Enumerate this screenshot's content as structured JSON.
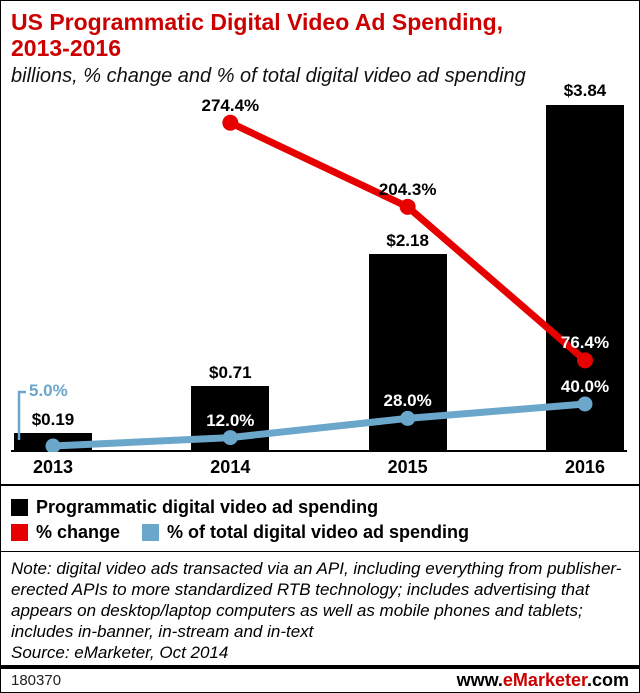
{
  "header": {
    "title_line1": "US Programmatic Digital Video Ad Spending,",
    "title_line2": "2013-2016",
    "subtitle": "billions, % change and % of total digital video ad spending"
  },
  "colors": {
    "title_red": "#cc0000",
    "bar_black": "#000000",
    "pct_change_red": "#e60000",
    "pct_of_total_blue": "#6ba7cb"
  },
  "chart_data": {
    "type": "bar",
    "categories": [
      "2013",
      "2014",
      "2015",
      "2016"
    ],
    "series": [
      {
        "name": "Programmatic digital video ad spending",
        "type": "bar",
        "unit": "USD billions",
        "values": [
          0.19,
          0.71,
          2.18,
          3.84
        ],
        "labels": [
          "$0.19",
          "$0.71",
          "$2.18",
          "$3.84"
        ],
        "color": "#000000"
      },
      {
        "name": "% change",
        "type": "line",
        "unit": "percent",
        "values": [
          null,
          274.4,
          204.3,
          76.4
        ],
        "labels": [
          null,
          "274.4%",
          "204.3%",
          "76.4%"
        ],
        "color": "#e60000"
      },
      {
        "name": "% of total digital video ad spending",
        "type": "line",
        "unit": "percent",
        "values": [
          5.0,
          12.0,
          28.0,
          40.0
        ],
        "labels": [
          "5.0%",
          "12.0%",
          "28.0%",
          "40.0%"
        ],
        "color": "#6ba7cb"
      }
    ],
    "bar_axis_range": [
      0,
      4.0
    ],
    "pct_axis_range": [
      0,
      300
    ],
    "grid": false,
    "legend_position": "bottom"
  },
  "note": {
    "text": "Note: digital video ads transacted via an API, including everything from publisher-erected APIs to more standardized RTB technology; includes advertising that appears on desktop/laptop computers as well as mobile phones and tablets; includes in-banner, in-stream and in-text",
    "source": "Source: eMarketer, Oct 2014"
  },
  "footer": {
    "id": "180370",
    "site_prefix": "www.",
    "site_brand": "eMarketer",
    "site_suffix": ".com"
  }
}
